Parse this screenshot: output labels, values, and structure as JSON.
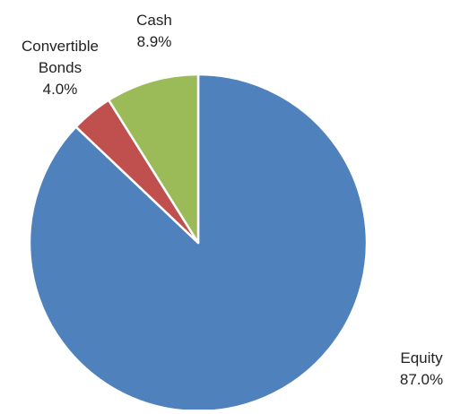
{
  "chart_data": {
    "type": "pie",
    "title": "",
    "start_angle_deg": 0,
    "direction": "clockwise",
    "slices": [
      {
        "label": "Equity",
        "value": 87.0,
        "display": "87.0%",
        "color": "#4f81bd"
      },
      {
        "label": "Convertible Bonds",
        "value": 4.0,
        "display": "4.0%",
        "color": "#c0504d"
      },
      {
        "label": "Cash",
        "value": 8.9,
        "display": "8.9%",
        "color": "#9bbb59"
      }
    ],
    "legend": "none",
    "data_labels": "outside"
  }
}
